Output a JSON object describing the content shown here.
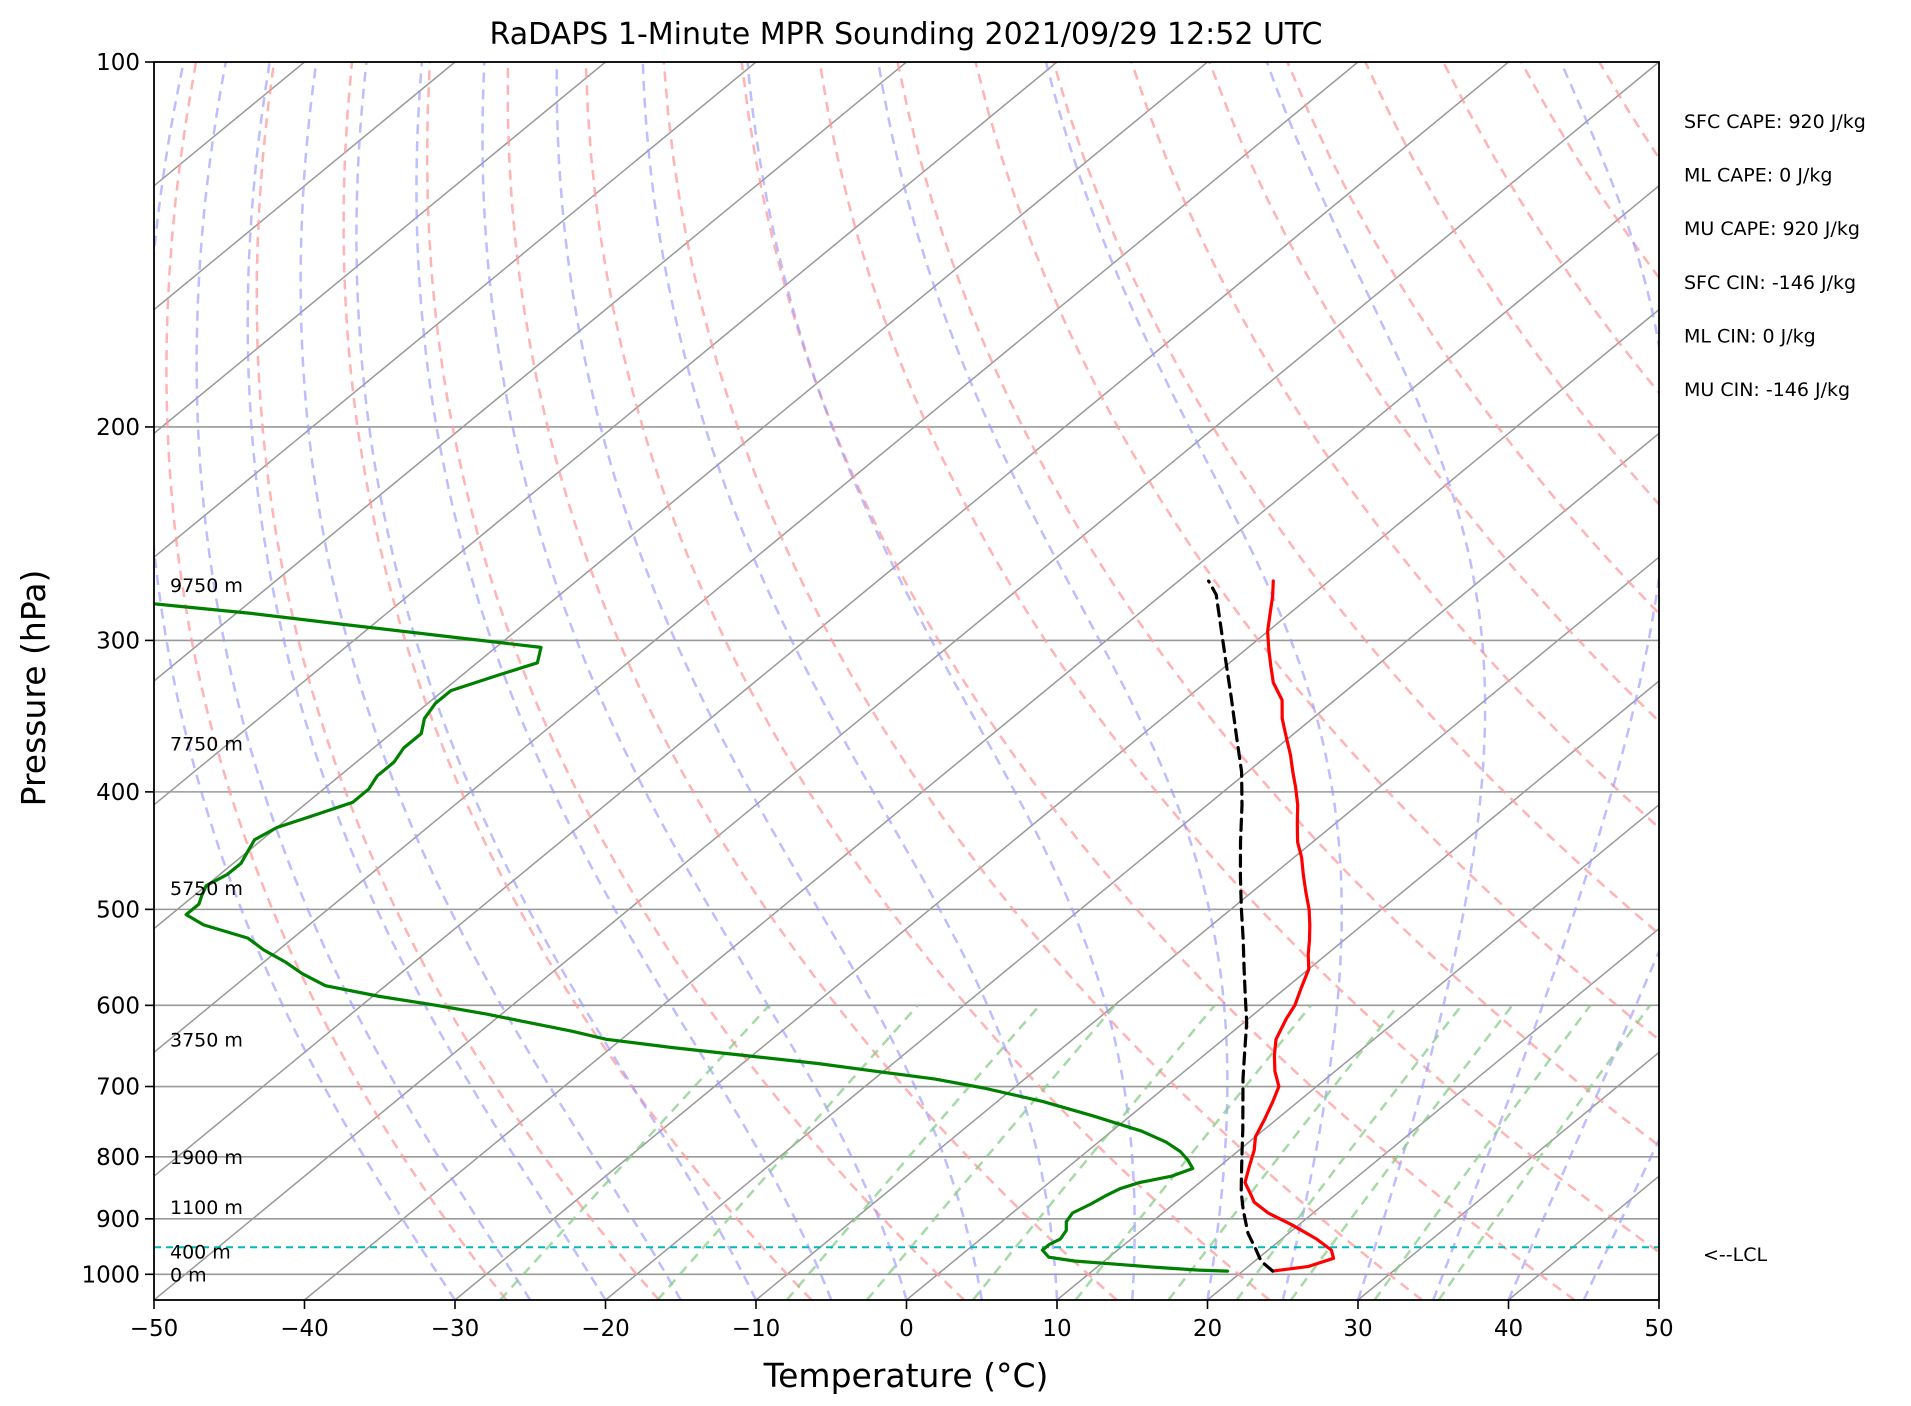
{
  "chart_data": {
    "type": "skew-t",
    "title": "RaDAPS 1-Minute MPR Sounding 2021/09/29 12:52 UTC",
    "xlabel": "Temperature (°C)",
    "ylabel": "Pressure (hPa)",
    "xlim": [
      -50,
      50
    ],
    "ylim": [
      1050,
      100
    ],
    "x_ticks": [
      -50,
      -40,
      -30,
      -20,
      -10,
      0,
      10,
      20,
      30,
      40,
      50
    ],
    "x_tick_labels": [
      "−50",
      "−40",
      "−30",
      "−20",
      "−10",
      "0",
      "10",
      "20",
      "30",
      "40",
      "50"
    ],
    "y_ticks": [
      100,
      200,
      300,
      400,
      500,
      600,
      700,
      800,
      900,
      1000
    ],
    "y_tick_labels": [
      "100",
      "200",
      "300",
      "400",
      "500",
      "600",
      "700",
      "800",
      "900",
      "1000"
    ],
    "grid": true,
    "series": [
      {
        "key": "temperature",
        "color": "#ff0000",
        "points": [
          [
            22.0,
            994
          ],
          [
            24.0,
            985
          ],
          [
            25.0,
            970
          ],
          [
            24.2,
            955
          ],
          [
            22.3,
            935
          ],
          [
            19.5,
            910
          ],
          [
            17.0,
            890
          ],
          [
            15.2,
            872
          ],
          [
            14.4,
            860
          ],
          [
            13.0,
            840
          ],
          [
            12.0,
            815
          ],
          [
            11.0,
            790
          ],
          [
            10.0,
            770
          ],
          [
            9.2,
            745
          ],
          [
            8.3,
            720
          ],
          [
            7.5,
            700
          ],
          [
            6.0,
            680
          ],
          [
            4.7,
            660
          ],
          [
            3.5,
            640
          ],
          [
            2.5,
            615
          ],
          [
            2.0,
            600
          ],
          [
            1.0,
            580
          ],
          [
            0.0,
            560
          ],
          [
            -1.2,
            545
          ],
          [
            -2.3,
            530
          ],
          [
            -3.5,
            515
          ],
          [
            -4.8,
            500
          ],
          [
            -6.5,
            483
          ],
          [
            -8.0,
            468
          ],
          [
            -9.5,
            453
          ],
          [
            -11.0,
            440
          ],
          [
            -12.5,
            425
          ],
          [
            -14.0,
            410
          ],
          [
            -15.5,
            397
          ],
          [
            -17.0,
            385
          ],
          [
            -18.5,
            373
          ],
          [
            -20.3,
            360
          ],
          [
            -22.0,
            348
          ],
          [
            -23.5,
            336
          ],
          [
            -25.5,
            325
          ],
          [
            -27.0,
            315
          ],
          [
            -28.5,
            305
          ],
          [
            -30.0,
            295
          ],
          [
            -31.3,
            285
          ],
          [
            -32.5,
            276
          ],
          [
            -33.7,
            268
          ]
        ]
      },
      {
        "key": "dewpoint",
        "color": "#008000",
        "points": [
          [
            19.0,
            994
          ],
          [
            17.0,
            992
          ],
          [
            14.0,
            987
          ],
          [
            11.5,
            982
          ],
          [
            8.0,
            975
          ],
          [
            6.0,
            968
          ],
          [
            5.0,
            955
          ],
          [
            5.0,
            945
          ],
          [
            5.3,
            935
          ],
          [
            5.0,
            920
          ],
          [
            4.3,
            905
          ],
          [
            4.0,
            890
          ],
          [
            4.5,
            875
          ],
          [
            4.8,
            862
          ],
          [
            5.2,
            850
          ],
          [
            6.0,
            840
          ],
          [
            7.6,
            830
          ],
          [
            8.4,
            818
          ],
          [
            7.4,
            805
          ],
          [
            6.2,
            792
          ],
          [
            4.5,
            778
          ],
          [
            2.0,
            762
          ],
          [
            -2.5,
            740
          ],
          [
            -7.0,
            720
          ],
          [
            -12.0,
            702
          ],
          [
            -16.0,
            690
          ],
          [
            -20.5,
            680
          ],
          [
            -25.0,
            670
          ],
          [
            -30.5,
            660
          ],
          [
            -36.0,
            650
          ],
          [
            -41.0,
            640
          ],
          [
            -44.0,
            630
          ],
          [
            -47.5,
            620
          ],
          [
            -51.0,
            610
          ],
          [
            -55.0,
            600
          ],
          [
            -59.5,
            590
          ],
          [
            -64.0,
            578
          ],
          [
            -66.5,
            565
          ],
          [
            -68.5,
            553
          ],
          [
            -71.0,
            540
          ],
          [
            -73.0,
            528
          ],
          [
            -77.0,
            515
          ],
          [
            -79.0,
            505
          ],
          [
            -79.0,
            495
          ],
          [
            -79.5,
            487
          ],
          [
            -80.0,
            478
          ],
          [
            -79.5,
            468
          ],
          [
            -79.5,
            458
          ],
          [
            -80.0,
            448
          ],
          [
            -80.5,
            438
          ],
          [
            -80.0,
            428
          ],
          [
            -78.5,
            418
          ],
          [
            -77.0,
            408
          ],
          [
            -77.0,
            398
          ],
          [
            -77.5,
            388
          ],
          [
            -77.5,
            378
          ],
          [
            -78.0,
            368
          ],
          [
            -78.0,
            358
          ],
          [
            -79.0,
            348
          ],
          [
            -79.5,
            338
          ],
          [
            -79.5,
            330
          ],
          [
            -77.5,
            320
          ],
          [
            -76.0,
            313
          ],
          [
            -77.0,
            304
          ],
          [
            -85.0,
            297
          ],
          [
            -92.0,
            291
          ],
          [
            -99.0,
            285
          ],
          [
            -106.0,
            280
          ],
          [
            -112.0,
            276
          ]
        ]
      },
      {
        "key": "parcel",
        "color": "#000000",
        "dashed": true,
        "points": [
          [
            22.0,
            994
          ],
          [
            20.4,
            975
          ],
          [
            19.2,
            955
          ],
          [
            17.3,
            925
          ],
          [
            15.1,
            885
          ],
          [
            13.5,
            855
          ],
          [
            12.0,
            825
          ],
          [
            10.2,
            790
          ],
          [
            8.6,
            760
          ],
          [
            6.6,
            725
          ],
          [
            4.5,
            690
          ],
          [
            2.4,
            655
          ],
          [
            0.2,
            620
          ],
          [
            -2.0,
            590
          ],
          [
            -4.3,
            560
          ],
          [
            -6.7,
            530
          ],
          [
            -9.3,
            500
          ],
          [
            -12.0,
            470
          ],
          [
            -14.8,
            440
          ],
          [
            -17.7,
            410
          ],
          [
            -20.4,
            385
          ],
          [
            -23.6,
            360
          ],
          [
            -27.0,
            335
          ],
          [
            -30.7,
            310
          ],
          [
            -34.7,
            285
          ],
          [
            -36.4,
            275
          ],
          [
            -38.0,
            268
          ]
        ]
      }
    ],
    "lcl_pressure": 950,
    "lcl_label": "<--LCL",
    "height_labels": [
      {
        "text": "9750 m",
        "p": 270
      },
      {
        "text": "7750 m",
        "p": 365
      },
      {
        "text": "5750 m",
        "p": 480
      },
      {
        "text": "3750 m",
        "p": 640
      },
      {
        "text": "1900 m",
        "p": 800
      },
      {
        "text": "1100 m",
        "p": 880
      },
      {
        "text": "400 m",
        "p": 958
      },
      {
        "text": "0 m",
        "p": 1000
      }
    ],
    "indices": [
      "SFC CAPE: 920 J/kg",
      "ML CAPE: 0 J/kg",
      "MU CAPE: 920 J/kg",
      "SFC CIN: -146 J/kg",
      "ML CIN: 0 J/kg",
      "MU CIN: -146 J/kg"
    ],
    "background_lines": {
      "dry_adiabat_color": "#ff9999",
      "moist_adiabat_color": "#9999ff",
      "mixing_ratio_color": "#88cc88",
      "isotherm_color": "#999999",
      "lcl_color": "#00bbbb"
    }
  }
}
